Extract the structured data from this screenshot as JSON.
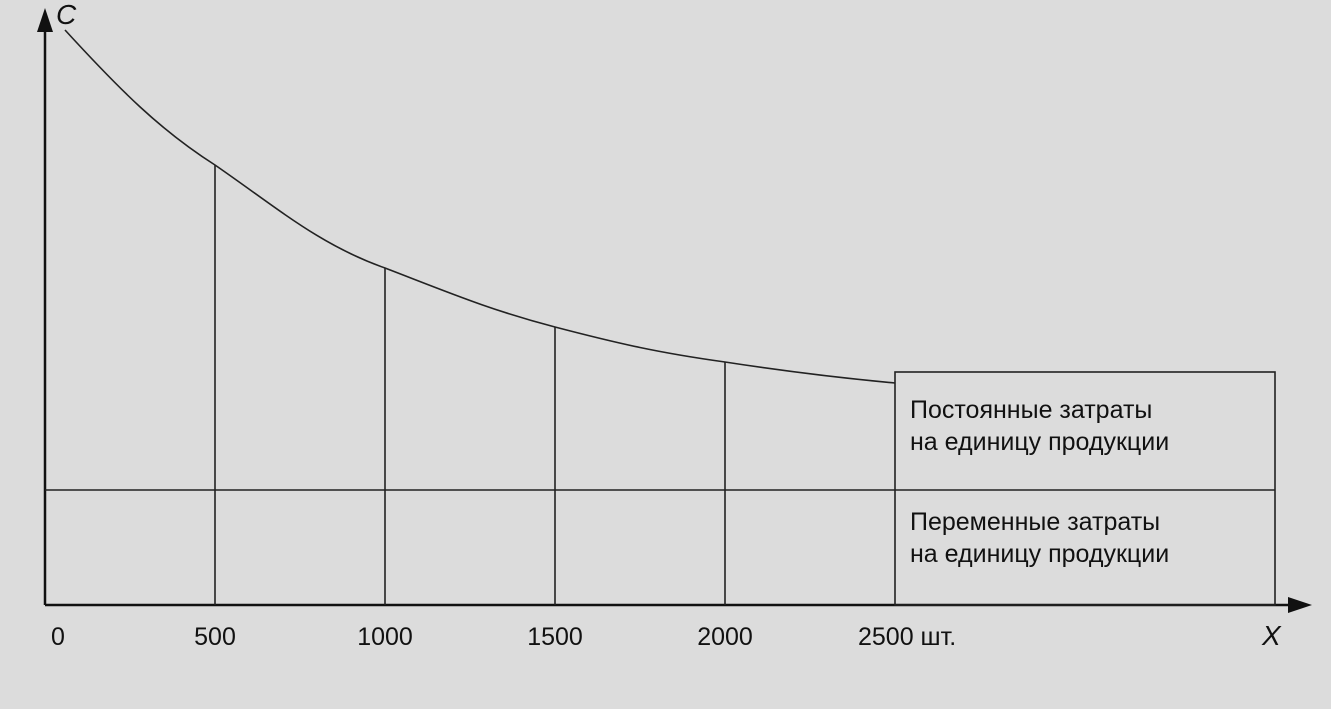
{
  "axes": {
    "y_label": "C",
    "x_label": "X"
  },
  "x_ticks": [
    "0",
    "500",
    "1000",
    "1500",
    "2000",
    "2500 шт."
  ],
  "box": {
    "fixed": [
      "Постоянные затраты",
      "на единицу продукции"
    ],
    "variable": [
      "Переменные затраты",
      "на единицу продукции"
    ]
  }
}
